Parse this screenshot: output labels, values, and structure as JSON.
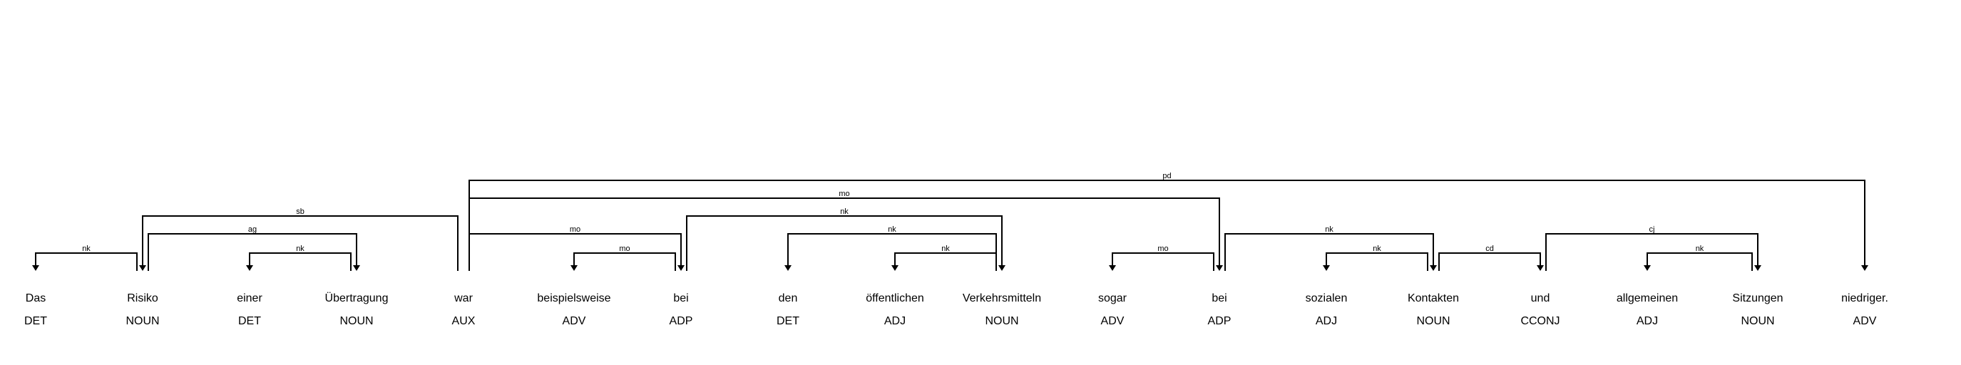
{
  "tokens": [
    {
      "word": "Das",
      "tag": "DET"
    },
    {
      "word": "Risiko",
      "tag": "NOUN"
    },
    {
      "word": "einer",
      "tag": "DET"
    },
    {
      "word": "Übertragung",
      "tag": "NOUN"
    },
    {
      "word": "war",
      "tag": "AUX"
    },
    {
      "word": "beispielsweise",
      "tag": "ADV"
    },
    {
      "word": "bei",
      "tag": "ADP"
    },
    {
      "word": "den",
      "tag": "DET"
    },
    {
      "word": "öffentlichen",
      "tag": "ADJ"
    },
    {
      "word": "Verkehrsmitteln",
      "tag": "NOUN"
    },
    {
      "word": "sogar",
      "tag": "ADV"
    },
    {
      "word": "bei",
      "tag": "ADP"
    },
    {
      "word": "sozialen",
      "tag": "ADJ"
    },
    {
      "word": "Kontakten",
      "tag": "NOUN"
    },
    {
      "word": "und",
      "tag": "CCONJ"
    },
    {
      "word": "allgemeinen",
      "tag": "ADJ"
    },
    {
      "word": "Sitzungen",
      "tag": "NOUN"
    },
    {
      "word": "niedriger.",
      "tag": "ADV"
    }
  ],
  "arcs": [
    {
      "head": 1,
      "dep": 0,
      "label": "nk"
    },
    {
      "head": 3,
      "dep": 2,
      "label": "nk"
    },
    {
      "head": 1,
      "dep": 3,
      "label": "ag"
    },
    {
      "head": 4,
      "dep": 1,
      "label": "sb"
    },
    {
      "head": 6,
      "dep": 5,
      "label": "mo"
    },
    {
      "head": 4,
      "dep": 6,
      "label": "mo"
    },
    {
      "head": 9,
      "dep": 8,
      "label": "nk"
    },
    {
      "head": 9,
      "dep": 7,
      "label": "nk"
    },
    {
      "head": 6,
      "dep": 9,
      "label": "nk"
    },
    {
      "head": 11,
      "dep": 10,
      "label": "mo"
    },
    {
      "head": 4,
      "dep": 11,
      "label": "mo"
    },
    {
      "head": 13,
      "dep": 12,
      "label": "nk"
    },
    {
      "head": 11,
      "dep": 13,
      "label": "nk"
    },
    {
      "head": 13,
      "dep": 14,
      "label": "cd"
    },
    {
      "head": 16,
      "dep": 15,
      "label": "nk"
    },
    {
      "head": 14,
      "dep": 16,
      "label": "cj"
    },
    {
      "head": 4,
      "dep": 17,
      "label": "pd"
    }
  ]
}
